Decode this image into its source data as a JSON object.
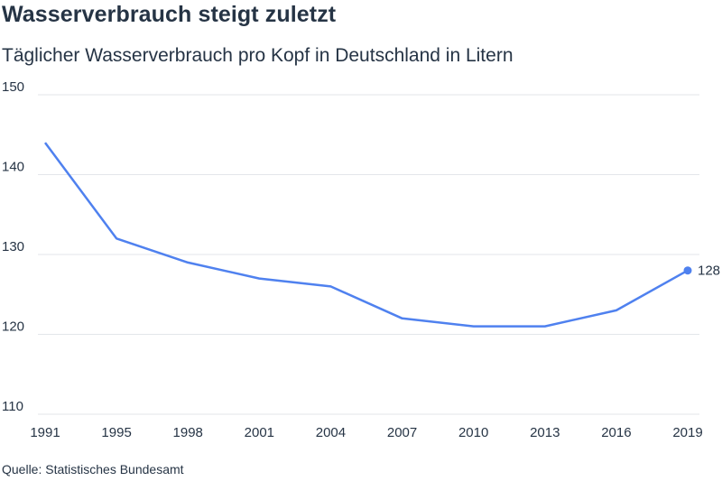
{
  "chart_data": {
    "type": "line",
    "title": "Wasserverbrauch steigt zuletzt",
    "subtitle": "Täglicher Wasserverbrauch pro Kopf in Deutschland in Litern",
    "source": "Quelle: Statistisches Bundesamt",
    "xlabel": "",
    "ylabel": "",
    "x": [
      "1991",
      "1995",
      "1998",
      "2001",
      "2004",
      "2007",
      "2010",
      "2013",
      "2016",
      "2019"
    ],
    "values": [
      144,
      132,
      129,
      127,
      126,
      122,
      121,
      121,
      123,
      128
    ],
    "ylim": [
      110,
      150
    ],
    "yticks": [
      "110",
      "120",
      "130",
      "140",
      "150"
    ],
    "end_label": "128",
    "grid": true,
    "line_color": "#4f81ef"
  }
}
